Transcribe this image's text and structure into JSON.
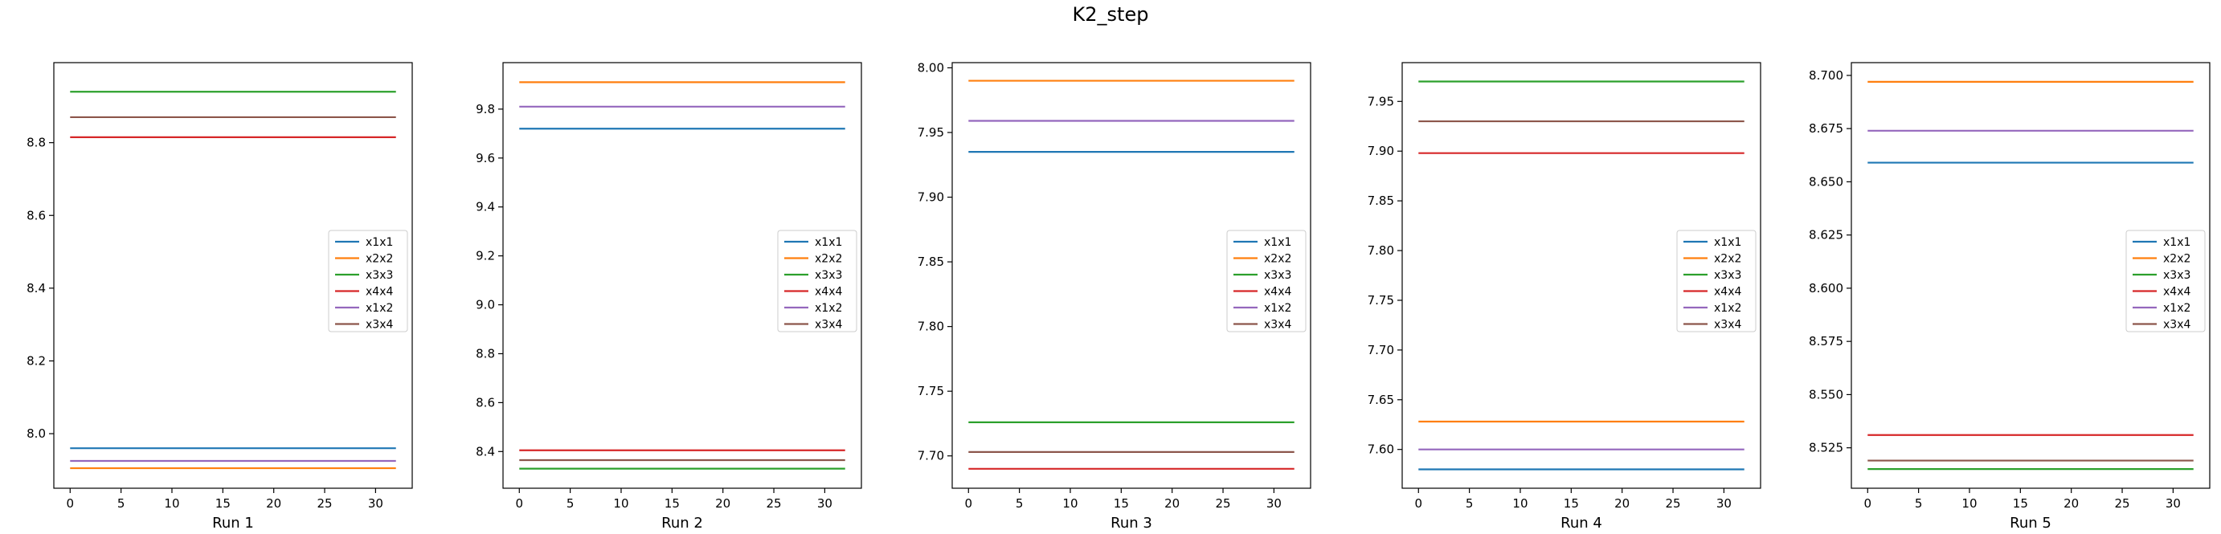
{
  "figure": {
    "title": "K2_step"
  },
  "chart_data": [
    {
      "type": "line",
      "xlabel": "Run 1",
      "x": [
        0,
        32
      ],
      "xlim": [
        -1.6,
        33.6
      ],
      "xticks": [
        0,
        5,
        10,
        15,
        20,
        25,
        30
      ],
      "ylim": [
        7.85,
        9.02
      ],
      "yticks": [
        8.0,
        8.2,
        8.4,
        8.6,
        8.8
      ],
      "ytick_decimals": 1,
      "legend": {
        "position": "center-right",
        "entries": [
          "x1x1",
          "x2x2",
          "x3x3",
          "x4x4",
          "x1x2",
          "x3x4"
        ]
      },
      "series": [
        {
          "name": "x1x1",
          "color": "#1f77b4",
          "values": [
            7.96,
            7.96
          ]
        },
        {
          "name": "x2x2",
          "color": "#ff7f0e",
          "values": [
            7.905,
            7.905
          ]
        },
        {
          "name": "x3x3",
          "color": "#2ca02c",
          "values": [
            8.94,
            8.94
          ]
        },
        {
          "name": "x4x4",
          "color": "#d62728",
          "values": [
            8.815,
            8.815
          ]
        },
        {
          "name": "x1x2",
          "color": "#9467bd",
          "values": [
            7.925,
            7.925
          ]
        },
        {
          "name": "x3x4",
          "color": "#8c564b",
          "values": [
            8.87,
            8.87
          ]
        }
      ]
    },
    {
      "type": "line",
      "xlabel": "Run 2",
      "x": [
        0,
        32
      ],
      "xlim": [
        -1.6,
        33.6
      ],
      "xticks": [
        0,
        5,
        10,
        15,
        20,
        25,
        30
      ],
      "ylim": [
        8.25,
        9.99
      ],
      "yticks": [
        8.4,
        8.6,
        8.8,
        9.0,
        9.2,
        9.4,
        9.6,
        9.8
      ],
      "ytick_decimals": 1,
      "legend": {
        "position": "center-right",
        "entries": [
          "x1x1",
          "x2x2",
          "x3x3",
          "x4x4",
          "x1x2",
          "x3x4"
        ]
      },
      "series": [
        {
          "name": "x1x1",
          "color": "#1f77b4",
          "values": [
            9.72,
            9.72
          ]
        },
        {
          "name": "x2x2",
          "color": "#ff7f0e",
          "values": [
            9.91,
            9.91
          ]
        },
        {
          "name": "x3x3",
          "color": "#2ca02c",
          "values": [
            8.33,
            8.33
          ]
        },
        {
          "name": "x4x4",
          "color": "#d62728",
          "values": [
            8.405,
            8.405
          ]
        },
        {
          "name": "x1x2",
          "color": "#9467bd",
          "values": [
            9.81,
            9.81
          ]
        },
        {
          "name": "x3x4",
          "color": "#8c564b",
          "values": [
            8.365,
            8.365
          ]
        }
      ]
    },
    {
      "type": "line",
      "xlabel": "Run 3",
      "x": [
        0,
        32
      ],
      "xlim": [
        -1.6,
        33.6
      ],
      "xticks": [
        0,
        5,
        10,
        15,
        20,
        25,
        30
      ],
      "ylim": [
        7.675,
        8.004
      ],
      "yticks": [
        7.7,
        7.75,
        7.8,
        7.85,
        7.9,
        7.95,
        8.0
      ],
      "ytick_decimals": 2,
      "legend": {
        "position": "center-right",
        "entries": [
          "x1x1",
          "x2x2",
          "x3x3",
          "x4x4",
          "x1x2",
          "x3x4"
        ]
      },
      "series": [
        {
          "name": "x1x1",
          "color": "#1f77b4",
          "values": [
            7.935,
            7.935
          ]
        },
        {
          "name": "x2x2",
          "color": "#ff7f0e",
          "values": [
            7.99,
            7.99
          ]
        },
        {
          "name": "x3x3",
          "color": "#2ca02c",
          "values": [
            7.726,
            7.726
          ]
        },
        {
          "name": "x4x4",
          "color": "#d62728",
          "values": [
            7.69,
            7.69
          ]
        },
        {
          "name": "x1x2",
          "color": "#9467bd",
          "values": [
            7.959,
            7.959
          ]
        },
        {
          "name": "x3x4",
          "color": "#8c564b",
          "values": [
            7.703,
            7.703
          ]
        }
      ]
    },
    {
      "type": "line",
      "xlabel": "Run 4",
      "x": [
        0,
        32
      ],
      "xlim": [
        -1.6,
        33.6
      ],
      "xticks": [
        0,
        5,
        10,
        15,
        20,
        25,
        30
      ],
      "ylim": [
        7.561,
        7.989
      ],
      "yticks": [
        7.6,
        7.65,
        7.7,
        7.75,
        7.8,
        7.85,
        7.9,
        7.95
      ],
      "ytick_decimals": 2,
      "legend": {
        "position": "center-right",
        "entries": [
          "x1x1",
          "x2x2",
          "x3x3",
          "x4x4",
          "x1x2",
          "x3x4"
        ]
      },
      "series": [
        {
          "name": "x1x1",
          "color": "#1f77b4",
          "values": [
            7.58,
            7.58
          ]
        },
        {
          "name": "x2x2",
          "color": "#ff7f0e",
          "values": [
            7.628,
            7.628
          ]
        },
        {
          "name": "x3x3",
          "color": "#2ca02c",
          "values": [
            7.97,
            7.97
          ]
        },
        {
          "name": "x4x4",
          "color": "#d62728",
          "values": [
            7.898,
            7.898
          ]
        },
        {
          "name": "x1x2",
          "color": "#9467bd",
          "values": [
            7.6,
            7.6
          ]
        },
        {
          "name": "x3x4",
          "color": "#8c564b",
          "values": [
            7.93,
            7.93
          ]
        }
      ]
    },
    {
      "type": "line",
      "xlabel": "Run 5",
      "x": [
        0,
        32
      ],
      "xlim": [
        -1.6,
        33.6
      ],
      "xticks": [
        0,
        5,
        10,
        15,
        20,
        25,
        30
      ],
      "ylim": [
        8.506,
        8.706
      ],
      "yticks": [
        8.525,
        8.55,
        8.575,
        8.6,
        8.625,
        8.65,
        8.675,
        8.7
      ],
      "ytick_decimals": 3,
      "legend": {
        "position": "center-right",
        "entries": [
          "x1x1",
          "x2x2",
          "x3x3",
          "x4x4",
          "x1x2",
          "x3x4"
        ]
      },
      "series": [
        {
          "name": "x1x1",
          "color": "#1f77b4",
          "values": [
            8.659,
            8.659
          ]
        },
        {
          "name": "x2x2",
          "color": "#ff7f0e",
          "values": [
            8.697,
            8.697
          ]
        },
        {
          "name": "x3x3",
          "color": "#2ca02c",
          "values": [
            8.515,
            8.515
          ]
        },
        {
          "name": "x4x4",
          "color": "#d62728",
          "values": [
            8.531,
            8.531
          ]
        },
        {
          "name": "x1x2",
          "color": "#9467bd",
          "values": [
            8.674,
            8.674
          ]
        },
        {
          "name": "x3x4",
          "color": "#8c564b",
          "values": [
            8.519,
            8.519
          ]
        }
      ]
    }
  ]
}
